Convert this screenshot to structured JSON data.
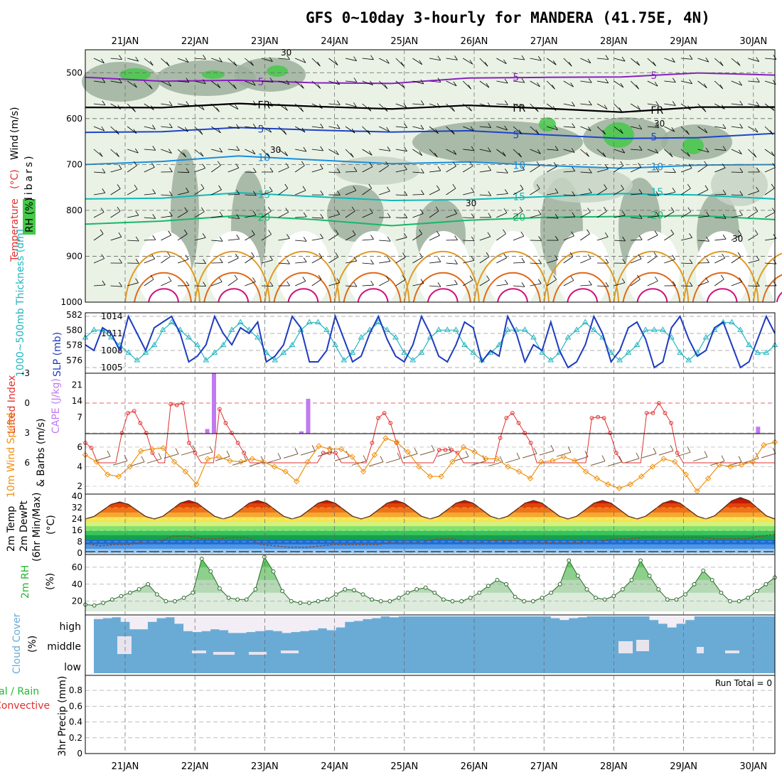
{
  "title": "GFS 0~10day 3-hourly for MANDERA (41.75E, 4N)",
  "dates": [
    "21JAN",
    "22JAN",
    "23JAN",
    "24JAN",
    "25JAN",
    "26JAN",
    "27JAN",
    "28JAN",
    "29JAN",
    "30JAN"
  ],
  "colors": {
    "rh_dark": "#9db09d",
    "rh_mid": "#c7d4c4",
    "rh_light": "#e9f2e5",
    "rh_green": "#47c84a",
    "purple": "#8a1fc0",
    "blue": "#1e44c8",
    "skyblue": "#1a8fdc",
    "teal": "#10b8b8",
    "green": "#16b86a",
    "orange": "#e39a25",
    "darkorange": "#e06818",
    "magenta": "#d0107a",
    "slp": "#1e3cc0",
    "thick": "#22b5c0",
    "li": "#e03030",
    "cape": "#c07af0",
    "wind": "#f0900e",
    "cloud": "#6aabd6",
    "rh2m": "#22b830"
  },
  "chart_data": [
    {
      "panel": "upper-air",
      "type": "contour-section",
      "y_axis_label": "(millibars)",
      "ylim": [
        1000,
        450
      ],
      "yticks": [
        500,
        600,
        700,
        800,
        900,
        1000
      ],
      "legend_labels": {
        "rh": "RH (%)",
        "temperature": "Temperature",
        "unit": "(°C)",
        "wind": "Wind",
        "wind_unit": "(m/s)"
      },
      "isotherms": [
        {
          "value": -5,
          "label": "5",
          "pressure_levels": [
            510,
            515,
            520,
            522,
            520,
            515,
            510,
            506,
            504,
            505
          ]
        },
        {
          "value": 0,
          "label": "FR",
          "pressure_levels": [
            575,
            572,
            570,
            573,
            575,
            574,
            577,
            582,
            578,
            574
          ]
        },
        {
          "value": 5,
          "label": "5",
          "pressure_levels": [
            630,
            625,
            623,
            625,
            626,
            630,
            635,
            640,
            645,
            632
          ]
        },
        {
          "value": 10,
          "label": "10",
          "pressure_levels": [
            700,
            690,
            685,
            690,
            695,
            698,
            702,
            705,
            705,
            700
          ]
        },
        {
          "value": 15,
          "label": "15",
          "pressure_levels": [
            775,
            770,
            765,
            770,
            775,
            780,
            770,
            760,
            770,
            775
          ]
        },
        {
          "value": 20,
          "label": "20",
          "pressure_levels": [
            830,
            820,
            815,
            820,
            830,
            825,
            815,
            810,
            815,
            820
          ]
        }
      ],
      "rh_labels": [
        "30"
      ]
    },
    {
      "panel": "slp-thickness",
      "type": "line",
      "labels": {
        "left": "1000~500mb Thickness (dm)",
        "right": "SLP (mb)"
      },
      "thickness_ticks": [
        576,
        578,
        580,
        582
      ],
      "slp_ticks": [
        1005,
        1008,
        1011,
        1014
      ],
      "slp": [
        1009,
        1008,
        1012,
        1011,
        1008,
        1014,
        1011,
        1008,
        1012,
        1013,
        1014,
        1011,
        1006,
        1007,
        1009,
        1014,
        1011,
        1009,
        1012,
        1011,
        1013,
        1006,
        1007,
        1009,
        1014,
        1012,
        1006,
        1006,
        1008,
        1014,
        1010,
        1006,
        1007,
        1011,
        1014,
        1010,
        1007,
        1006,
        1009,
        1014,
        1011,
        1007,
        1006,
        1009,
        1013,
        1012,
        1006,
        1008,
        1007,
        1014,
        1011,
        1006,
        1009,
        1008,
        1013,
        1008,
        1005,
        1006,
        1009,
        1014,
        1011,
        1006,
        1008,
        1012,
        1013,
        1010,
        1005,
        1006,
        1012,
        1014,
        1010,
        1007,
        1008,
        1012,
        1013,
        1009,
        1005,
        1006,
        1010,
        1014,
        1011
      ],
      "thickness": [
        579,
        580,
        580,
        579,
        578,
        577,
        576,
        577,
        578,
        580,
        581,
        580,
        579,
        578,
        576,
        577,
        578,
        580,
        581,
        580,
        579,
        577,
        576,
        577,
        578,
        580,
        581,
        581,
        580,
        578,
        576,
        577,
        579,
        580,
        581,
        580,
        579,
        577,
        576,
        577,
        579,
        580,
        580,
        580,
        578,
        577,
        576,
        577,
        578,
        580,
        580,
        580,
        579,
        577,
        576,
        577,
        579,
        580,
        581,
        580,
        579,
        577,
        576,
        577,
        578,
        580,
        580,
        580,
        579,
        577,
        576,
        577,
        579,
        580,
        581,
        581,
        580,
        578,
        577,
        577,
        578
      ]
    },
    {
      "panel": "lifted-index-cape",
      "type": "line+bar",
      "labels": {
        "left": "Lifted Index",
        "right": "CAPE (J/kg)"
      },
      "li_ticks": [
        "-3",
        "0",
        "3",
        "6"
      ],
      "cape_ticks": [
        "7",
        "14",
        "21"
      ],
      "lifted_index": [
        4,
        4.5,
        6,
        6,
        6,
        6,
        3,
        1,
        0.8,
        2,
        3,
        5,
        6,
        6,
        0.1,
        0.2,
        0,
        4,
        5,
        6,
        6,
        6,
        0.6,
        2,
        3,
        4,
        5,
        6,
        6,
        6,
        6,
        6,
        6,
        6,
        6,
        6,
        6,
        6,
        6,
        5,
        5,
        5,
        6,
        6,
        6,
        6,
        6,
        4,
        1.5,
        1,
        2,
        4,
        6,
        6,
        6,
        6,
        6,
        6,
        4.7,
        4.7,
        4.7,
        5,
        6,
        6,
        6,
        6,
        6,
        6,
        3.5,
        1.5,
        1,
        2,
        3,
        4,
        6,
        6,
        6,
        6,
        6,
        6,
        6,
        6,
        6,
        1.5,
        1.4,
        1.5,
        3,
        5,
        6,
        6,
        6,
        6,
        1,
        1,
        0,
        1,
        2,
        5,
        6,
        6,
        6,
        6,
        6,
        6,
        6,
        6,
        6,
        6,
        6,
        6,
        6,
        6,
        6,
        6
      ],
      "cape": [
        {
          "t": 14.5,
          "v": 2
        },
        {
          "t": 15.3,
          "v": 26
        },
        {
          "t": 25.7,
          "v": 1
        },
        {
          "t": 26.5,
          "v": 15
        },
        {
          "t": 80.0,
          "v": 3
        }
      ]
    },
    {
      "panel": "wind-10m",
      "type": "line",
      "labels": {
        "left": "10m Wind Speed",
        "right": "& Barbs (m/s)"
      },
      "yticks": [
        "2",
        "4",
        "6"
      ],
      "speed": [
        5.2,
        4.5,
        3.2,
        3.0,
        4.0,
        5.6,
        5.8,
        5.9,
        4.5,
        3.5,
        2.2,
        4.8,
        5.0,
        4.6,
        4.5,
        4.8,
        4.5,
        4.0,
        3.5,
        2.5,
        4.5,
        6.1,
        5.8,
        5.8,
        5.0,
        3.5,
        5.2,
        6.9,
        6.5,
        5.5,
        4.0,
        3.0,
        3.0,
        4.5,
        6.0,
        5.5,
        4.8,
        4.8,
        4.0,
        3.5,
        2.8,
        4.5,
        4.6,
        5.0,
        4.6,
        3.5,
        2.8,
        2.2,
        1.8,
        2.2,
        3.0,
        4.0,
        4.8,
        4.5,
        3.2,
        1.5,
        2.8,
        4.2,
        4.0,
        4.2,
        4.5,
        6.2,
        6.5
      ],
      "barb_label": "Barbs"
    },
    {
      "panel": "temp-dewpoint",
      "type": "area+line",
      "labels": {
        "a": "2m Temp",
        "b": "2m DewPt",
        "c": "(6hr Min/Max)",
        "unit": "(°C)"
      },
      "yticks": [
        "0",
        "8",
        "16",
        "24",
        "32",
        "40"
      ],
      "temp_max": [
        36,
        37,
        37,
        37,
        37,
        37,
        37,
        37,
        37,
        39
      ],
      "temp_min": [
        24,
        24,
        24,
        24,
        24,
        24,
        24,
        24,
        24,
        24
      ],
      "dewpoint": [
        7,
        5,
        6,
        6,
        8,
        8,
        12,
        12,
        10,
        10,
        11,
        11,
        6,
        5,
        4,
        4,
        5,
        6,
        6,
        6,
        6,
        8,
        8,
        8,
        10,
        10,
        8,
        8,
        9,
        9,
        8,
        8,
        7,
        7,
        8,
        8,
        10,
        10,
        11,
        11,
        11,
        11,
        11,
        10,
        10,
        10,
        12,
        13
      ],
      "color_bands": [
        "#9dc9f0",
        "#4e96e6",
        "#1e6cd2",
        "#16a04e",
        "#38c45a",
        "#86e06a",
        "#d6f07e",
        "#f4e44e",
        "#f4a832",
        "#f07418",
        "#e04408",
        "#c41a06",
        "#8a0c04"
      ]
    },
    {
      "panel": "rh-2m",
      "type": "area",
      "labels": {
        "left": "2m RH",
        "unit": "(%)"
      },
      "yticks": [
        "20",
        "40",
        "60"
      ],
      "values": [
        16,
        15,
        18,
        22,
        26,
        30,
        34,
        40,
        28,
        20,
        20,
        24,
        30,
        70,
        55,
        35,
        24,
        22,
        22,
        34,
        72,
        55,
        32,
        20,
        18,
        18,
        20,
        22,
        28,
        34,
        33,
        28,
        22,
        20,
        20,
        24,
        30,
        34,
        36,
        30,
        22,
        20,
        20,
        24,
        30,
        38,
        45,
        40,
        25,
        20,
        20,
        24,
        30,
        40,
        68,
        50,
        34,
        24,
        22,
        26,
        34,
        45,
        68,
        50,
        34,
        22,
        22,
        28,
        40,
        56,
        45,
        30,
        20,
        20,
        24,
        32,
        40,
        48
      ],
      "fill_colors": [
        "#dcebdc",
        "#b4d9b4",
        "#8cd08c",
        "#5cc95c"
      ]
    },
    {
      "panel": "cloud-cover",
      "type": "bar",
      "labels": {
        "left": "Cloud Cover",
        "unit": "(%)",
        "high": "high",
        "middle": "middle",
        "low": "low"
      },
      "high": [
        85,
        90,
        95,
        70,
        30,
        30,
        70,
        90,
        95,
        60,
        20,
        15,
        20,
        30,
        25,
        10,
        10,
        15,
        20,
        25,
        20,
        10,
        15,
        20,
        25,
        35,
        25,
        40,
        70,
        75,
        85,
        90,
        100,
        95,
        100,
        100,
        100,
        100,
        100,
        100,
        100,
        100,
        100,
        100,
        100,
        100,
        100,
        100,
        100,
        100,
        100,
        90,
        80,
        90,
        95,
        100,
        100,
        100,
        100,
        100,
        100,
        100,
        80,
        60,
        40,
        60,
        80,
        100,
        100,
        100,
        100,
        100,
        100,
        100,
        100,
        100
      ],
      "middle_gap": [
        0,
        0,
        0,
        0,
        0,
        0,
        0,
        0,
        0,
        0,
        0,
        0,
        0,
        0,
        0,
        0,
        0,
        0,
        0,
        0,
        0,
        0,
        0,
        0,
        0,
        0,
        0,
        0,
        0,
        0,
        0,
        0,
        0,
        0,
        0,
        0,
        0,
        0,
        0,
        0,
        0,
        0,
        0,
        0,
        0,
        0,
        0,
        0,
        0,
        0,
        0,
        0,
        0,
        0,
        0,
        0,
        0,
        0,
        0,
        0,
        0,
        0,
        0,
        0,
        0,
        0,
        0,
        0,
        0,
        0,
        0,
        0,
        0,
        0,
        0,
        0
      ]
    },
    {
      "panel": "precip",
      "type": "bar",
      "labels": {
        "left": "3hr Precip (mm)",
        "a": "Total / Rain",
        "b": "Convective"
      },
      "yticks": [
        "0",
        "0.2",
        "0.4",
        "0.6",
        "0.8"
      ],
      "run_total_label": "Run Total = 0",
      "values": [
        0,
        0,
        0,
        0,
        0,
        0,
        0,
        0,
        0,
        0,
        0,
        0,
        0,
        0,
        0,
        0,
        0,
        0,
        0,
        0
      ]
    }
  ]
}
